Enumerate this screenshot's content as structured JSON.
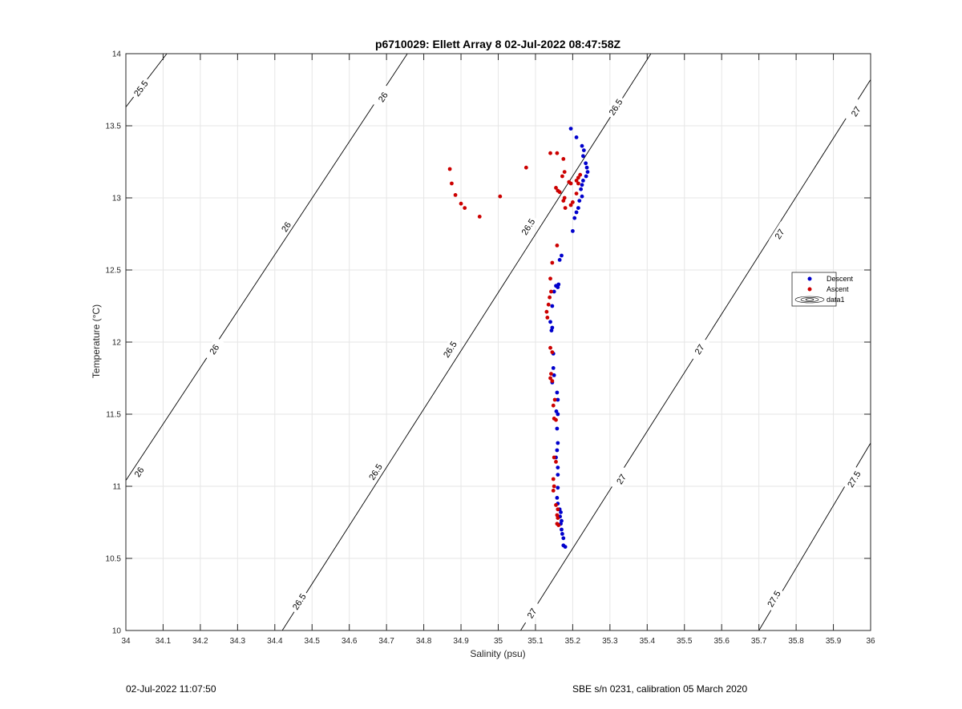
{
  "chart_data": {
    "type": "scatter",
    "title": "p6710029: Ellett Array 8 02-Jul-2022 08:47:58Z",
    "xlabel": "Salinity (psu)",
    "ylabel": "Temperature (°C)",
    "xlim": [
      34,
      36
    ],
    "ylim": [
      10,
      14
    ],
    "xticks": [
      34,
      34.1,
      34.2,
      34.3,
      34.4,
      34.5,
      34.6,
      34.7,
      34.8,
      34.9,
      35,
      35.1,
      35.2,
      35.3,
      35.4,
      35.5,
      35.6,
      35.7,
      35.8,
      35.9,
      36
    ],
    "xtick_labels": [
      "34",
      "34.1",
      "34.2",
      "34.3",
      "34.4",
      "34.5",
      "34.6",
      "34.7",
      "34.8",
      "34.9",
      "35",
      "35.1",
      "35.2",
      "35.3",
      "35.4",
      "35.5",
      "35.6",
      "35.7",
      "35.8",
      "35.9",
      "36"
    ],
    "yticks": [
      10,
      10.5,
      11,
      11.5,
      12,
      12.5,
      13,
      13.5,
      14
    ],
    "ytick_labels": [
      "10",
      "10.5",
      "11",
      "11.5",
      "12",
      "12.5",
      "13",
      "13.5",
      "14"
    ],
    "grid": true,
    "legend_position": "right",
    "legend": [
      "Descent",
      "Ascent",
      "data1"
    ],
    "series": [
      {
        "name": "Descent",
        "color": "#0000cc",
        "points": [
          [
            35.195,
            13.48
          ],
          [
            35.21,
            13.42
          ],
          [
            35.225,
            13.36
          ],
          [
            35.23,
            13.33
          ],
          [
            35.228,
            13.29
          ],
          [
            35.235,
            13.24
          ],
          [
            35.238,
            13.21
          ],
          [
            35.24,
            13.18
          ],
          [
            35.236,
            13.15
          ],
          [
            35.228,
            13.12
          ],
          [
            35.225,
            13.09
          ],
          [
            35.222,
            13.06
          ],
          [
            35.225,
            13.01
          ],
          [
            35.218,
            12.98
          ],
          [
            35.215,
            12.93
          ],
          [
            35.21,
            12.9
          ],
          [
            35.205,
            12.86
          ],
          [
            35.2,
            12.77
          ],
          [
            35.17,
            12.6
          ],
          [
            35.165,
            12.57
          ],
          [
            35.162,
            12.4
          ],
          [
            35.155,
            12.39
          ],
          [
            35.16,
            12.38
          ],
          [
            35.15,
            12.35
          ],
          [
            35.145,
            12.25
          ],
          [
            35.14,
            12.14
          ],
          [
            35.145,
            12.1
          ],
          [
            35.143,
            12.08
          ],
          [
            35.148,
            11.92
          ],
          [
            35.148,
            11.82
          ],
          [
            35.15,
            11.77
          ],
          [
            35.145,
            11.72
          ],
          [
            35.158,
            11.65
          ],
          [
            35.16,
            11.6
          ],
          [
            35.156,
            11.52
          ],
          [
            35.16,
            11.5
          ],
          [
            35.158,
            11.4
          ],
          [
            35.16,
            11.3
          ],
          [
            35.158,
            11.25
          ],
          [
            35.155,
            11.2
          ],
          [
            35.16,
            11.13
          ],
          [
            35.16,
            11.08
          ],
          [
            35.16,
            10.99
          ],
          [
            35.158,
            10.92
          ],
          [
            35.16,
            10.88
          ],
          [
            35.165,
            10.84
          ],
          [
            35.168,
            10.82
          ],
          [
            35.166,
            10.79
          ],
          [
            35.17,
            10.76
          ],
          [
            35.168,
            10.74
          ],
          [
            35.17,
            10.7
          ],
          [
            35.172,
            10.67
          ],
          [
            35.175,
            10.64
          ],
          [
            35.175,
            10.59
          ],
          [
            35.18,
            10.58
          ]
        ]
      },
      {
        "name": "Ascent",
        "color": "#cc0000",
        "points": [
          [
            34.87,
            13.2
          ],
          [
            34.875,
            13.1
          ],
          [
            34.885,
            13.02
          ],
          [
            34.9,
            12.96
          ],
          [
            34.91,
            12.93
          ],
          [
            34.95,
            12.87
          ],
          [
            35.005,
            13.01
          ],
          [
            35.075,
            13.21
          ],
          [
            35.14,
            13.31
          ],
          [
            35.158,
            13.31
          ],
          [
            35.175,
            13.27
          ],
          [
            35.155,
            13.07
          ],
          [
            35.16,
            13.05
          ],
          [
            35.165,
            13.04
          ],
          [
            35.178,
            13.18
          ],
          [
            35.172,
            13.15
          ],
          [
            35.19,
            13.11
          ],
          [
            35.195,
            13.1
          ],
          [
            35.21,
            13.12
          ],
          [
            35.215,
            13.14
          ],
          [
            35.22,
            13.16
          ],
          [
            35.215,
            13.1
          ],
          [
            35.21,
            13.03
          ],
          [
            35.2,
            12.97
          ],
          [
            35.195,
            12.95
          ],
          [
            35.178,
            13.0
          ],
          [
            35.175,
            12.98
          ],
          [
            35.18,
            12.93
          ],
          [
            35.158,
            12.67
          ],
          [
            35.145,
            12.55
          ],
          [
            35.14,
            12.44
          ],
          [
            35.142,
            12.35
          ],
          [
            35.138,
            12.31
          ],
          [
            35.135,
            12.26
          ],
          [
            35.13,
            12.21
          ],
          [
            35.132,
            12.17
          ],
          [
            35.14,
            11.96
          ],
          [
            35.145,
            11.93
          ],
          [
            35.142,
            11.78
          ],
          [
            35.14,
            11.75
          ],
          [
            35.145,
            11.73
          ],
          [
            35.152,
            11.6
          ],
          [
            35.148,
            11.56
          ],
          [
            35.15,
            11.47
          ],
          [
            35.155,
            11.46
          ],
          [
            35.15,
            11.2
          ],
          [
            35.155,
            11.17
          ],
          [
            35.148,
            11.05
          ],
          [
            35.15,
            11.0
          ],
          [
            35.148,
            10.97
          ],
          [
            35.155,
            10.87
          ],
          [
            35.16,
            10.84
          ],
          [
            35.158,
            10.8
          ],
          [
            35.16,
            10.78
          ],
          [
            35.158,
            10.74
          ],
          [
            35.162,
            10.73
          ]
        ]
      }
    ],
    "contours": [
      {
        "level": "25.5",
        "points": [
          [
            34,
            13.63
          ],
          [
            34.11,
            14
          ]
        ],
        "labels": [
          [
            34.04,
            13.76,
            "25.5"
          ]
        ]
      },
      {
        "level": "26",
        "points": [
          [
            34,
            11.04
          ],
          [
            34.756,
            14
          ]
        ],
        "labels": [
          [
            34.69,
            13.7,
            "26"
          ],
          [
            34.43,
            12.8,
            "26"
          ],
          [
            34.237,
            11.95,
            "26"
          ],
          [
            34.035,
            11.1,
            "26"
          ]
        ]
      },
      {
        "level": "26.5",
        "points": [
          [
            34.42,
            10
          ],
          [
            35.41,
            14
          ]
        ],
        "labels": [
          [
            35.315,
            13.63,
            "26.5"
          ],
          [
            35.08,
            12.8,
            "26.5"
          ],
          [
            34.87,
            11.95,
            "26.5"
          ],
          [
            34.67,
            11.1,
            "26.5"
          ],
          [
            34.465,
            10.2,
            "26.5"
          ]
        ]
      },
      {
        "level": "27",
        "points": [
          [
            35.06,
            10
          ],
          [
            36,
            13.82
          ]
        ],
        "labels": [
          [
            35.96,
            13.6,
            "27"
          ],
          [
            35.755,
            12.75,
            "27"
          ],
          [
            35.54,
            11.95,
            "27"
          ],
          [
            35.33,
            11.05,
            "27"
          ],
          [
            35.09,
            10.12,
            "27"
          ]
        ]
      },
      {
        "level": "27.5",
        "points": [
          [
            35.7,
            10
          ],
          [
            36,
            11.3
          ]
        ],
        "labels": [
          [
            35.955,
            11.05,
            "27.5"
          ],
          [
            35.74,
            10.22,
            "27.5"
          ]
        ]
      }
    ]
  },
  "footer": {
    "left": "02-Jul-2022 11:07:50",
    "right": "SBE s/n 0231, calibration 05 March 2020"
  }
}
